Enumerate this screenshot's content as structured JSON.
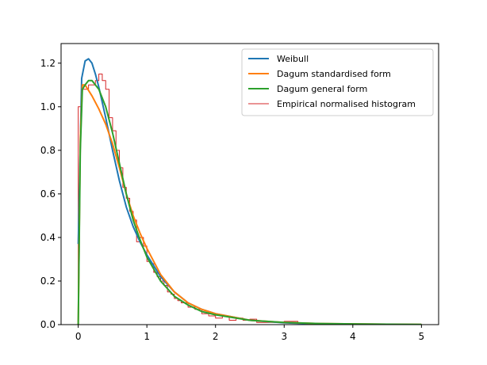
{
  "chart_data": {
    "type": "line",
    "title": "",
    "xlabel": "",
    "ylabel": "",
    "xlim": [
      -0.25,
      5.25
    ],
    "ylim": [
      0.0,
      1.29
    ],
    "xticks": [
      0,
      1,
      2,
      3,
      4,
      5
    ],
    "yticks": [
      0.0,
      0.2,
      0.4,
      0.6,
      0.8,
      1.0,
      1.2
    ],
    "xtick_labels": [
      "0",
      "1",
      "2",
      "3",
      "4",
      "5"
    ],
    "ytick_labels": [
      "0.0",
      "0.2",
      "0.4",
      "0.6",
      "0.8",
      "1.0",
      "1.2"
    ],
    "grid": false,
    "legend_position": "upper right",
    "series": [
      {
        "name": "Weibull",
        "kind": "line",
        "color": "#1f77b4",
        "x": [
          0.0,
          0.05,
          0.1,
          0.15,
          0.2,
          0.25,
          0.3,
          0.4,
          0.5,
          0.6,
          0.7,
          0.8,
          0.9,
          1.0,
          1.2,
          1.4,
          1.6,
          1.8,
          2.0,
          2.5,
          3.0,
          3.5,
          4.0,
          4.5,
          5.0
        ],
        "y": [
          0.37,
          1.13,
          1.21,
          1.22,
          1.2,
          1.15,
          1.09,
          0.95,
          0.8,
          0.66,
          0.54,
          0.45,
          0.38,
          0.32,
          0.22,
          0.15,
          0.1,
          0.07,
          0.05,
          0.02,
          0.008,
          0.003,
          0.001,
          0.0005,
          0.0002
        ]
      },
      {
        "name": "Dagum standardised form",
        "kind": "line",
        "color": "#ff7f0e",
        "x": [
          0.0,
          0.03,
          0.06,
          0.1,
          0.2,
          0.3,
          0.4,
          0.5,
          0.6,
          0.7,
          0.8,
          0.9,
          1.0,
          1.2,
          1.4,
          1.6,
          1.8,
          2.0,
          2.5,
          3.0,
          3.5,
          4.0,
          4.5,
          5.0
        ],
        "y": [
          0.0,
          0.85,
          1.1,
          1.1,
          1.05,
          0.99,
          0.92,
          0.83,
          0.72,
          0.6,
          0.5,
          0.42,
          0.35,
          0.23,
          0.15,
          0.1,
          0.07,
          0.05,
          0.02,
          0.01,
          0.005,
          0.003,
          0.002,
          0.001
        ]
      },
      {
        "name": "Dagum general form",
        "kind": "line",
        "color": "#2ca02c",
        "x": [
          0.0,
          0.03,
          0.06,
          0.1,
          0.15,
          0.2,
          0.3,
          0.4,
          0.5,
          0.6,
          0.7,
          0.8,
          0.9,
          1.0,
          1.2,
          1.4,
          1.6,
          1.8,
          2.0,
          2.5,
          3.0,
          3.5,
          4.0,
          4.5,
          5.0
        ],
        "y": [
          0.0,
          0.8,
          1.08,
          1.1,
          1.12,
          1.12,
          1.08,
          1.0,
          0.88,
          0.74,
          0.6,
          0.48,
          0.39,
          0.31,
          0.2,
          0.13,
          0.09,
          0.06,
          0.045,
          0.02,
          0.01,
          0.005,
          0.003,
          0.002,
          0.001
        ]
      },
      {
        "name": "Empirical normalised histogram",
        "kind": "step",
        "color": "#d62728",
        "x": [
          0.0,
          0.05,
          0.1,
          0.15,
          0.2,
          0.25,
          0.3,
          0.35,
          0.4,
          0.45,
          0.5,
          0.55,
          0.6,
          0.65,
          0.7,
          0.75,
          0.8,
          0.85,
          0.9,
          0.95,
          1.0,
          1.05,
          1.1,
          1.15,
          1.2,
          1.25,
          1.3,
          1.35,
          1.4,
          1.45,
          1.5,
          1.6,
          1.7,
          1.8,
          1.9,
          2.0,
          2.1,
          2.2,
          2.3,
          2.4,
          2.5,
          2.6,
          2.8,
          3.0,
          3.2,
          3.6,
          4.0,
          4.4,
          4.8,
          5.0
        ],
        "y": [
          1.0,
          1.08,
          1.08,
          1.1,
          1.1,
          1.12,
          1.15,
          1.12,
          1.08,
          0.95,
          0.89,
          0.8,
          0.72,
          0.63,
          0.58,
          0.52,
          0.48,
          0.38,
          0.4,
          0.36,
          0.29,
          0.28,
          0.24,
          0.22,
          0.2,
          0.18,
          0.15,
          0.14,
          0.12,
          0.11,
          0.1,
          0.08,
          0.07,
          0.05,
          0.04,
          0.03,
          0.04,
          0.02,
          0.03,
          0.02,
          0.025,
          0.01,
          0.01,
          0.015,
          0.005,
          0.005,
          0.003,
          0.002,
          0.001,
          0.0
        ]
      }
    ]
  }
}
